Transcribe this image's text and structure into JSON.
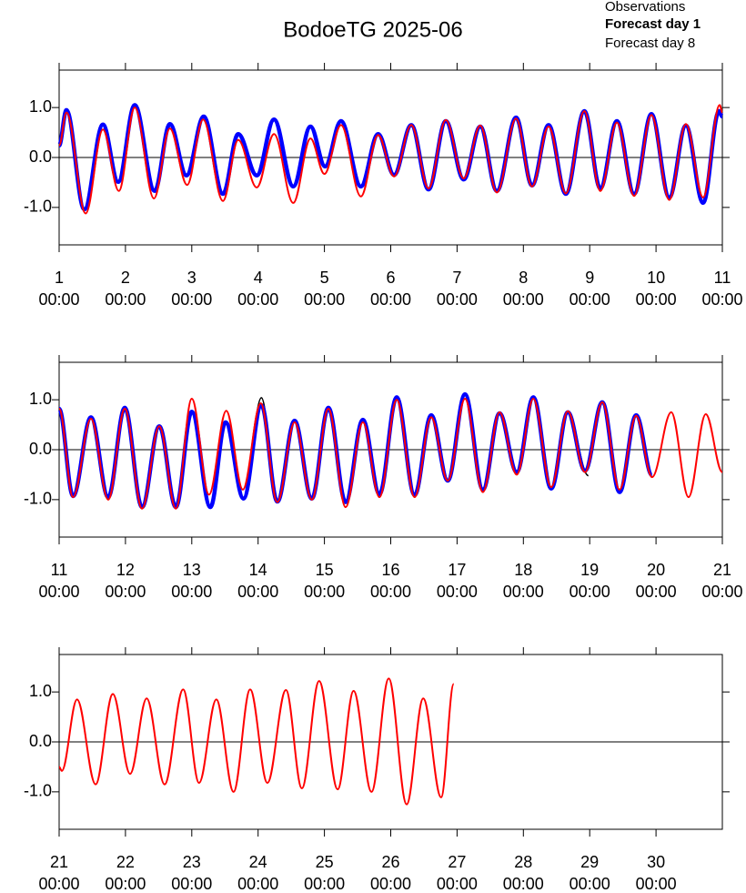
{
  "chart_data": [
    {
      "type": "line",
      "title": "BodoeTG 2025-06",
      "xlim": [
        1,
        11
      ],
      "xticks": [
        1,
        2,
        3,
        4,
        5,
        6,
        7,
        8,
        9,
        10,
        11
      ],
      "x_time_labels": [
        "00:00",
        "00:00",
        "00:00",
        "00:00",
        "00:00",
        "00:00",
        "00:00",
        "00:00",
        "00:00",
        "00:00",
        "00:00"
      ],
      "ylim": [
        -1.75,
        1.75
      ],
      "yticks": [
        {
          "value": -1,
          "label": "-1.0"
        },
        {
          "value": 0,
          "label": "0.0"
        },
        {
          "value": 1,
          "label": "1.0"
        }
      ],
      "zero_line": true,
      "series": [
        {
          "name": "Observations",
          "color": "#000000",
          "x": [
            1.0,
            1.11,
            1.38,
            1.66,
            1.89,
            2.14,
            2.44,
            2.67,
            2.92,
            3.18,
            3.47,
            3.7,
            3.98,
            4.24,
            4.53,
            4.79,
            5.01,
            5.25,
            5.55,
            5.81,
            6.05,
            6.31,
            6.57,
            6.83,
            7.1,
            7.35,
            7.6,
            7.89,
            8.13,
            8.38,
            8.64,
            8.92,
            9.16,
            9.41,
            9.67,
            9.93,
            10.2,
            10.45,
            10.71,
            10.95,
            11.0
          ],
          "values": [
            0.24,
            0.95,
            -1.04,
            0.66,
            -0.49,
            1.05,
            -0.67,
            0.67,
            -0.36,
            0.82,
            -0.73,
            0.47,
            -0.36,
            0.76,
            -0.58,
            0.62,
            -0.18,
            0.73,
            -0.58,
            0.47,
            -0.35,
            0.65,
            -0.64,
            0.73,
            -0.44,
            0.62,
            -0.67,
            0.8,
            -0.56,
            0.65,
            -0.73,
            0.93,
            -0.62,
            0.73,
            -0.73,
            0.87,
            -0.8,
            0.64,
            -0.91,
            0.93,
            0.82
          ]
        },
        {
          "name": "Forecast day 1",
          "color": "#0000ff",
          "x": [
            1.0,
            1.11,
            1.38,
            1.66,
            1.89,
            2.14,
            2.44,
            2.67,
            2.92,
            3.18,
            3.47,
            3.7,
            3.98,
            4.24,
            4.53,
            4.79,
            5.01,
            5.25,
            5.55,
            5.81,
            6.05,
            6.31,
            6.57,
            6.83,
            7.1,
            7.35,
            7.6,
            7.89,
            8.13,
            8.38,
            8.64,
            8.92,
            9.16,
            9.41,
            9.67,
            9.93,
            10.2,
            10.45,
            10.71,
            10.95,
            11.0
          ],
          "values": [
            0.24,
            0.95,
            -1.04,
            0.66,
            -0.49,
            1.05,
            -0.67,
            0.67,
            -0.36,
            0.82,
            -0.73,
            0.47,
            -0.36,
            0.76,
            -0.58,
            0.62,
            -0.18,
            0.73,
            -0.58,
            0.47,
            -0.35,
            0.65,
            -0.64,
            0.73,
            -0.44,
            0.62,
            -0.67,
            0.8,
            -0.56,
            0.65,
            -0.73,
            0.93,
            -0.62,
            0.73,
            -0.73,
            0.87,
            -0.8,
            0.64,
            -0.91,
            0.93,
            0.82
          ]
        },
        {
          "name": "Forecast day 8",
          "color": "#ff0000",
          "x": [
            1.0,
            1.11,
            1.4,
            1.66,
            1.9,
            2.14,
            2.43,
            2.67,
            2.93,
            3.17,
            3.47,
            3.7,
            3.98,
            4.24,
            4.53,
            4.79,
            5.0,
            5.25,
            5.55,
            5.81,
            6.05,
            6.31,
            6.57,
            6.83,
            7.1,
            7.35,
            7.6,
            7.89,
            8.13,
            8.38,
            8.64,
            8.92,
            9.16,
            9.41,
            9.67,
            9.93,
            10.2,
            10.45,
            10.71,
            10.96,
            11.0
          ],
          "values": [
            0.24,
            0.9,
            -1.12,
            0.56,
            -0.67,
            1.0,
            -0.82,
            0.58,
            -0.55,
            0.76,
            -0.87,
            0.35,
            -0.6,
            0.47,
            -0.91,
            0.38,
            -0.33,
            0.65,
            -0.78,
            0.45,
            -0.38,
            0.65,
            -0.62,
            0.75,
            -0.42,
            0.64,
            -0.7,
            0.78,
            -0.58,
            0.62,
            -0.72,
            0.93,
            -0.67,
            0.7,
            -0.77,
            0.85,
            -0.85,
            0.67,
            -0.8,
            1.05,
            0.9
          ]
        }
      ]
    },
    {
      "type": "line",
      "xlim": [
        11,
        21
      ],
      "xticks": [
        11,
        12,
        13,
        14,
        15,
        16,
        17,
        18,
        19,
        20,
        21
      ],
      "x_time_labels": [
        "00:00",
        "00:00",
        "00:00",
        "00:00",
        "00:00",
        "00:00",
        "00:00",
        "00:00",
        "00:00",
        "00:00",
        "00:00"
      ],
      "ylim": [
        -1.75,
        1.75
      ],
      "yticks": [
        {
          "value": -1,
          "label": "-1.0"
        },
        {
          "value": 0,
          "label": "0.0"
        },
        {
          "value": 1,
          "label": "1.0"
        }
      ],
      "zero_line": true,
      "series": [
        {
          "color": "#000000",
          "x": [
            11.0,
            11.21,
            11.48,
            11.74,
            11.99,
            12.25,
            12.51,
            12.76,
            13.0,
            13.28,
            13.51,
            13.78,
            14.05,
            14.29,
            14.55,
            14.81,
            15.06,
            15.32,
            15.58,
            15.83,
            16.09,
            16.36,
            16.61,
            16.86,
            17.12,
            17.39,
            17.64,
            17.9,
            18.15,
            18.42,
            18.67,
            18.98
          ],
          "values": [
            0.82,
            -0.93,
            0.65,
            -0.95,
            0.84,
            -1.15,
            0.47,
            -1.15,
            0.76,
            -1.15,
            0.55,
            -0.98,
            1.04,
            -1.04,
            0.58,
            -0.98,
            0.84,
            -1.05,
            0.6,
            -0.89,
            1.05,
            -0.91,
            0.69,
            -0.62,
            1.11,
            -0.8,
            0.73,
            -0.45,
            1.05,
            -0.78,
            0.75,
            -0.52
          ]
        },
        {
          "color": "#0000ff",
          "x": [
            11.0,
            11.21,
            11.48,
            11.74,
            11.99,
            12.25,
            12.51,
            12.76,
            13.0,
            13.28,
            13.51,
            13.78,
            14.05,
            14.29,
            14.55,
            14.81,
            15.06,
            15.32,
            15.58,
            15.83,
            16.09,
            16.36,
            16.61,
            16.86,
            17.12,
            17.39,
            17.64,
            17.9,
            18.15,
            18.42,
            18.67,
            18.93,
            19.19,
            19.45,
            19.7,
            19.94
          ],
          "values": [
            0.82,
            -0.93,
            0.65,
            -0.95,
            0.84,
            -1.15,
            0.47,
            -1.15,
            0.76,
            -1.15,
            0.55,
            -0.98,
            0.89,
            -1.04,
            0.58,
            -0.98,
            0.84,
            -1.05,
            0.6,
            -0.89,
            1.05,
            -0.91,
            0.69,
            -0.62,
            1.11,
            -0.8,
            0.73,
            -0.45,
            1.05,
            -0.78,
            0.75,
            -0.42,
            0.95,
            -0.85,
            0.69,
            -0.51
          ]
        },
        {
          "color": "#ff0000",
          "x": [
            11.0,
            11.21,
            11.48,
            11.74,
            11.99,
            12.25,
            12.51,
            12.76,
            13.0,
            13.26,
            13.52,
            13.77,
            14.04,
            14.29,
            14.55,
            14.81,
            15.06,
            15.32,
            15.58,
            15.83,
            16.09,
            16.36,
            16.61,
            16.86,
            17.12,
            17.39,
            17.64,
            17.9,
            18.15,
            18.42,
            18.67,
            18.93,
            19.19,
            19.45,
            19.7,
            19.94,
            20.23,
            20.49,
            20.75,
            21.0
          ],
          "values": [
            0.82,
            -0.95,
            0.62,
            -1.0,
            0.82,
            -1.18,
            0.47,
            -1.18,
            1.02,
            -0.9,
            0.78,
            -0.8,
            0.93,
            -1.05,
            0.55,
            -1.0,
            0.82,
            -1.15,
            0.55,
            -0.95,
            1.0,
            -0.95,
            0.65,
            -0.62,
            1.02,
            -0.85,
            0.75,
            -0.5,
            1.02,
            -0.75,
            0.77,
            -0.45,
            0.95,
            -0.8,
            0.68,
            -0.55,
            0.75,
            -0.95,
            0.71,
            -0.45
          ]
        }
      ]
    },
    {
      "type": "line",
      "xlim": [
        21,
        31
      ],
      "xticks": [
        21,
        22,
        23,
        24,
        25,
        26,
        27,
        28,
        29,
        30
      ],
      "x_time_labels": [
        "00:00",
        "00:00",
        "00:00",
        "00:00",
        "00:00",
        "00:00",
        "00:00",
        "00:00",
        "00:00",
        "00:00"
      ],
      "ylim": [
        -1.75,
        1.75
      ],
      "yticks": [
        {
          "value": -1,
          "label": "-1.0"
        },
        {
          "value": 0,
          "label": "0.0"
        },
        {
          "value": 1,
          "label": "1.0"
        }
      ],
      "zero_line": true,
      "series": [
        {
          "color": "#ff0000",
          "x": [
            21.0,
            21.04,
            21.27,
            21.55,
            21.81,
            22.07,
            22.32,
            22.59,
            22.87,
            23.11,
            23.37,
            23.63,
            23.88,
            24.14,
            24.42,
            24.66,
            24.92,
            25.2,
            25.44,
            25.71,
            25.97,
            26.24,
            26.49,
            26.76,
            26.95
          ],
          "values": [
            -0.5,
            -0.58,
            0.85,
            -0.85,
            0.96,
            -0.64,
            0.87,
            -0.85,
            1.05,
            -0.82,
            0.85,
            -1.0,
            1.05,
            -0.82,
            1.04,
            -0.93,
            1.22,
            -0.95,
            1.02,
            -1.0,
            1.27,
            -1.25,
            0.87,
            -1.11,
            1.16
          ]
        }
      ]
    }
  ]
}
